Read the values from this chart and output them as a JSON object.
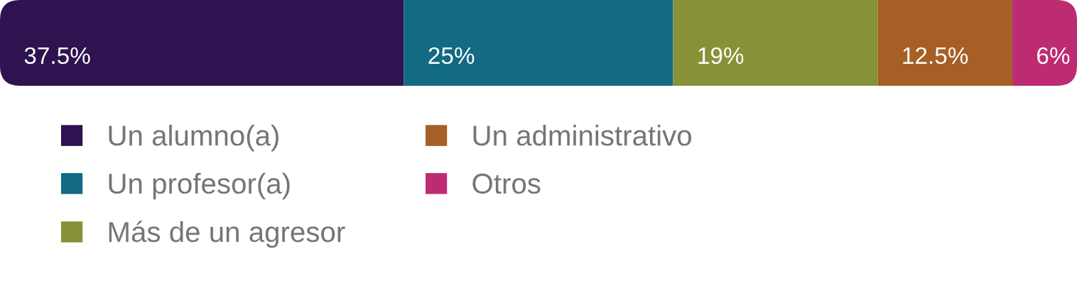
{
  "chart_data": {
    "type": "bar",
    "orientation": "horizontal",
    "stacked": true,
    "categories": [
      null
    ],
    "xlim": [
      0,
      100
    ],
    "tick_labels": false,
    "legend": "bottom",
    "series": [
      {
        "name": "Un alumno(a)",
        "color": "#2e1350",
        "values": [
          37.5
        ],
        "value_labels": [
          "37.5%"
        ]
      },
      {
        "name": "Un profesor(a)",
        "color": "#126a83",
        "values": [
          25
        ],
        "value_labels": [
          "25%"
        ]
      },
      {
        "name": "Más de un agresor",
        "color": "#879137",
        "values": [
          19
        ],
        "value_labels": [
          "19%"
        ]
      },
      {
        "name": "Un administrativo",
        "color": "#a65f24",
        "values": [
          12.5
        ],
        "value_labels": [
          "12.5%"
        ]
      },
      {
        "name": "Otros",
        "color": "#bd2c72",
        "values": [
          6
        ],
        "value_labels": [
          "6%"
        ]
      }
    ]
  }
}
